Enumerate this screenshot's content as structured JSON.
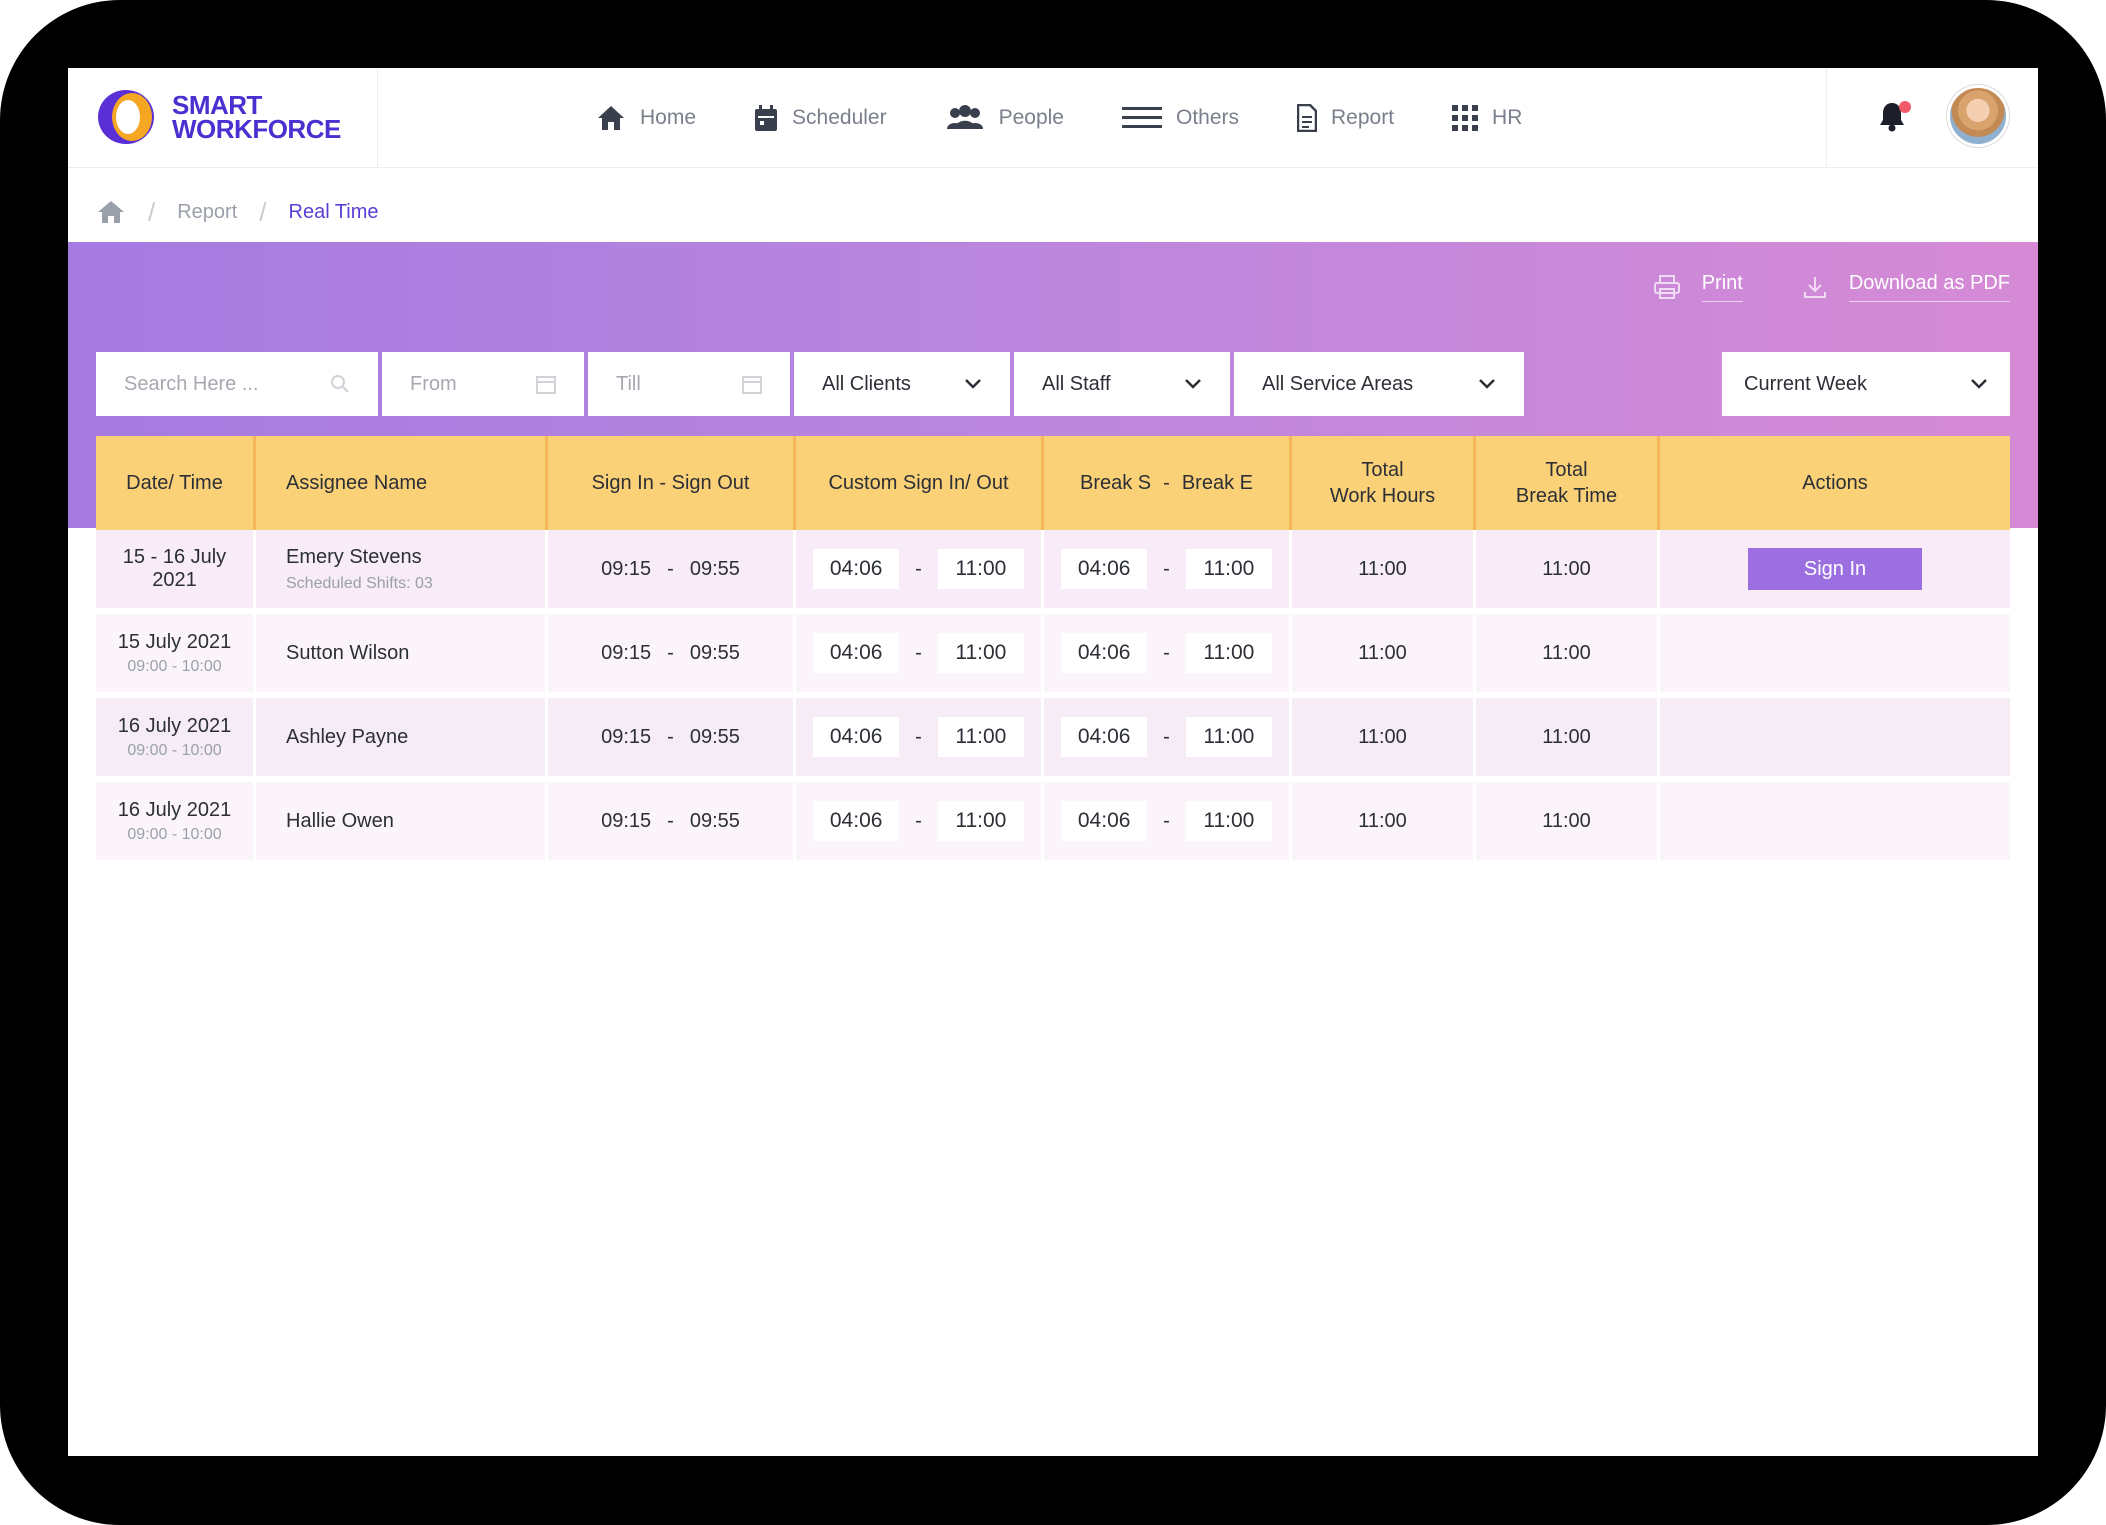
{
  "brand": {
    "line1": "SMART",
    "line2": "WORKFORCE"
  },
  "nav": [
    {
      "label": "Home",
      "icon": "home-icon"
    },
    {
      "label": "Scheduler",
      "icon": "calendar-icon"
    },
    {
      "label": "People",
      "icon": "people-icon"
    },
    {
      "label": "Others",
      "icon": "menu-icon"
    },
    {
      "label": "Report",
      "icon": "document-icon"
    },
    {
      "label": "HR",
      "icon": "grid-icon"
    }
  ],
  "breadcrumb": {
    "sep": "/",
    "report": "Report",
    "current": "Real Time"
  },
  "actions": {
    "print": "Print",
    "download": "Download as PDF"
  },
  "filters": {
    "search_placeholder": "Search Here ...",
    "from": "From",
    "till": "Till",
    "clients": "All Clients",
    "staff": "All Staff",
    "service_areas": "All Service Areas",
    "period": "Current Week"
  },
  "table": {
    "headers": {
      "date": "Date/ Time",
      "assignee": "Assignee Name",
      "sign": "Sign In - Sign Out",
      "custom": "Custom Sign In/ Out",
      "break_s": "Break S",
      "break_dash": "-",
      "break_e": "Break E",
      "work_line1": "Total",
      "work_line2": "Work Hours",
      "break_line1": "Total",
      "break_line2": "Break Time",
      "actions": "Actions"
    },
    "rows": [
      {
        "date_line1": "15 - 16 July",
        "date_line2": "2021",
        "name": "Emery Stevens",
        "sub": "Scheduled Shifts: 03",
        "sign_in": "09:15",
        "sign_out": "09:55",
        "custom_in": "04:06",
        "custom_out": "11:00",
        "break_s": "04:06",
        "break_e": "11:00",
        "work": "11:00",
        "break_total": "11:00",
        "action": "Sign In"
      },
      {
        "date_line1": "15 July 2021",
        "date_line2": "09:00 - 10:00",
        "name": "Sutton Wilson",
        "sub": "",
        "sign_in": "09:15",
        "sign_out": "09:55",
        "custom_in": "04:06",
        "custom_out": "11:00",
        "break_s": "04:06",
        "break_e": "11:00",
        "work": "11:00",
        "break_total": "11:00",
        "action": ""
      },
      {
        "date_line1": "16 July 2021",
        "date_line2": "09:00 - 10:00",
        "name": "Ashley Payne",
        "sub": "",
        "sign_in": "09:15",
        "sign_out": "09:55",
        "custom_in": "04:06",
        "custom_out": "11:00",
        "break_s": "04:06",
        "break_e": "11:00",
        "work": "11:00",
        "break_total": "11:00",
        "action": ""
      },
      {
        "date_line1": "16 July 2021",
        "date_line2": "09:00 - 10:00",
        "name": "Hallie Owen",
        "sub": "",
        "sign_in": "09:15",
        "sign_out": "09:55",
        "custom_in": "04:06",
        "custom_out": "11:00",
        "break_s": "04:06",
        "break_e": "11:00",
        "work": "11:00",
        "break_total": "11:00",
        "action": ""
      }
    ],
    "dash": "-"
  },
  "colors": {
    "accent": "#5b3ed6",
    "header": "#fbd178",
    "button": "#9b6fe0"
  }
}
